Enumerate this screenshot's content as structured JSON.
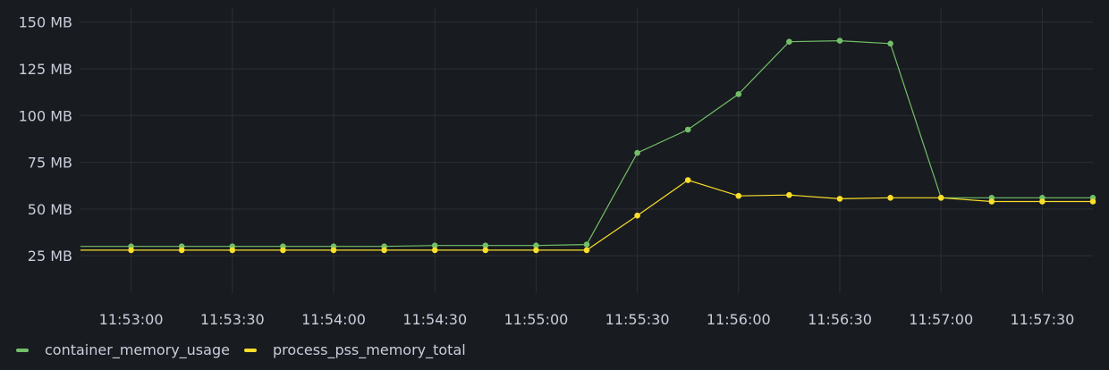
{
  "chart_data": {
    "type": "line",
    "x_ticks": [
      "11:53:00",
      "11:53:30",
      "11:54:00",
      "11:54:30",
      "11:55:00",
      "11:55:30",
      "11:56:00",
      "11:56:30",
      "11:57:00",
      "11:57:30"
    ],
    "y_ticks": [
      "25 MB",
      "50 MB",
      "75 MB",
      "100 MB",
      "125 MB",
      "150 MB"
    ],
    "ylim": [
      5,
      158
    ],
    "x_tick_positions_seconds": [
      0,
      30,
      60,
      90,
      120,
      150,
      180,
      210,
      240,
      270
    ],
    "x_range_seconds": [
      -15,
      285
    ],
    "unit": "MB",
    "grid": true,
    "legend_position": "bottom-left",
    "x": [
      "11:53:00",
      "11:53:15",
      "11:53:30",
      "11:53:45",
      "11:54:00",
      "11:54:15",
      "11:54:30",
      "11:54:45",
      "11:55:00",
      "11:55:15",
      "11:55:30",
      "11:55:45",
      "11:56:00",
      "11:56:15",
      "11:56:30",
      "11:56:45",
      "11:57:00",
      "11:57:15",
      "11:57:30",
      "11:57:45"
    ],
    "x_seconds": [
      0,
      15,
      30,
      45,
      60,
      75,
      90,
      105,
      120,
      135,
      150,
      165,
      180,
      195,
      210,
      225,
      240,
      255,
      270,
      285
    ],
    "series": [
      {
        "name": "container_memory_usage",
        "color": "#73bf69",
        "values": [
          30,
          30,
          30,
          30,
          30,
          30,
          30.5,
          30.5,
          30.5,
          31,
          80,
          92.5,
          111.5,
          139.5,
          140,
          138.5,
          56,
          56,
          56,
          56
        ]
      },
      {
        "name": "process_pss_memory_total",
        "color": "#fade2a",
        "values": [
          28,
          28,
          28,
          28,
          28,
          28,
          28,
          28,
          28,
          28,
          46.5,
          65.5,
          57,
          57.5,
          55.5,
          56,
          56,
          54,
          54,
          54
        ]
      }
    ]
  },
  "legend": {
    "items": [
      {
        "label": "container_memory_usage",
        "color": "#73bf69"
      },
      {
        "label": "process_pss_memory_total",
        "color": "#fade2a"
      }
    ]
  }
}
